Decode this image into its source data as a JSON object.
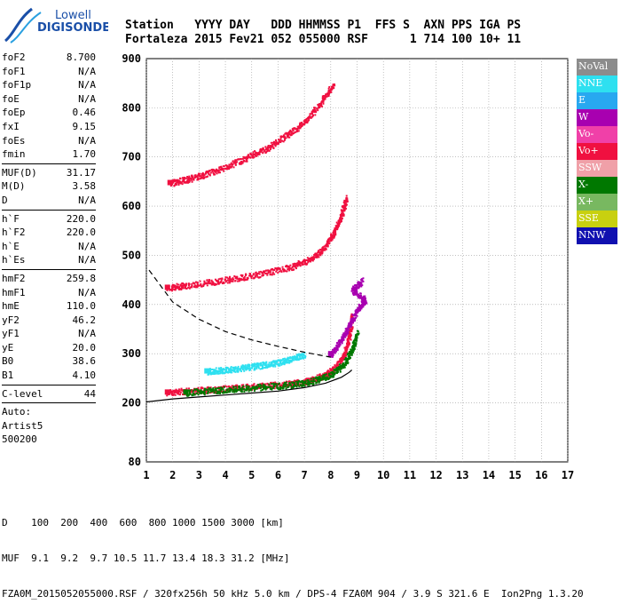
{
  "logo": {
    "line1": "Lowell",
    "line2": "DIGISONDE"
  },
  "header": {
    "line1": "Station   YYYY DAY   DDD HHMMSS P1  FFS S  AXN PPS IGA PS",
    "line2": "Fortaleza 2015 Fev21 052 055000 RSF      1 714 100 10+ 11"
  },
  "params_group1": [
    {
      "name": "foF2",
      "value": "8.700"
    },
    {
      "name": "foF1",
      "value": "N/A"
    },
    {
      "name": "foF1p",
      "value": "N/A"
    },
    {
      "name": "foE",
      "value": "N/A"
    },
    {
      "name": "foEp",
      "value": "0.46"
    },
    {
      "name": "fxI",
      "value": "9.15"
    },
    {
      "name": "foEs",
      "value": "N/A"
    },
    {
      "name": "fmin",
      "value": "1.70"
    }
  ],
  "params_group2": [
    {
      "name": "MUF(D)",
      "value": "31.17"
    },
    {
      "name": "M(D)",
      "value": "3.58"
    },
    {
      "name": "D",
      "value": "N/A"
    }
  ],
  "params_group3": [
    {
      "name": "h`F",
      "value": "220.0"
    },
    {
      "name": "h`F2",
      "value": "220.0"
    },
    {
      "name": "h`E",
      "value": "N/A"
    },
    {
      "name": "h`Es",
      "value": "N/A"
    }
  ],
  "params_group4": [
    {
      "name": "hmF2",
      "value": "259.8"
    },
    {
      "name": "hmF1",
      "value": "N/A"
    },
    {
      "name": "hmE",
      "value": "110.0"
    },
    {
      "name": "yF2",
      "value": "46.2"
    },
    {
      "name": "yF1",
      "value": "N/A"
    },
    {
      "name": "yE",
      "value": "20.0"
    },
    {
      "name": "B0",
      "value": "38.6"
    },
    {
      "name": "B1",
      "value": "4.10"
    }
  ],
  "params_group5": [
    {
      "name": "C-level",
      "value": "44"
    }
  ],
  "auto": [
    "Auto:",
    "Artist5",
    "500200"
  ],
  "legend": [
    {
      "label": "NoVal",
      "color": "#8c8c8c"
    },
    {
      "label": "NNE",
      "color": "#2ee0f0"
    },
    {
      "label": "E",
      "color": "#28a8f0"
    },
    {
      "label": "W",
      "color": "#a800b0"
    },
    {
      "label": "Vo-",
      "color": "#f040a8"
    },
    {
      "label": "Vo+",
      "color": "#f01040"
    },
    {
      "label": "SSW",
      "color": "#f0a0a8"
    },
    {
      "label": "X-",
      "color": "#007800"
    },
    {
      "label": "X+",
      "color": "#78b860"
    },
    {
      "label": "SSE",
      "color": "#c8d010"
    },
    {
      "label": "NNW",
      "color": "#1010b0"
    }
  ],
  "footer": {
    "line1": "D    100  200  400  600  800 1000 1500 3000 [km]",
    "line2": "MUF  9.1  9.2  9.7 10.5 11.7 13.4 18.3 31.2 [MHz]",
    "line3": "FZA0M_2015052055000.RSF / 320fx256h 50 kHz 5.0 km / DPS-4 FZA0M 904 / 3.9 S 321.6 E  Ion2Png 1.3.20"
  },
  "chart_data": {
    "type": "scatter",
    "title": "",
    "xlabel": "",
    "ylabel": "",
    "xlim": [
      1,
      17
    ],
    "ylim": [
      80,
      900
    ],
    "x_ticks": [
      1,
      2,
      3,
      4,
      5,
      6,
      7,
      8,
      9,
      10,
      11,
      12,
      13,
      14,
      15,
      16,
      17
    ],
    "y_ticks": [
      80,
      200,
      300,
      400,
      500,
      600,
      700,
      800,
      900
    ],
    "grid": true,
    "series": [
      {
        "name": "Vo+",
        "color": "#f01040",
        "trace": [
          [
            1.8,
            222
          ],
          [
            2.5,
            225
          ],
          [
            3.5,
            228
          ],
          [
            4.5,
            232
          ],
          [
            5.5,
            236
          ],
          [
            6.5,
            240
          ],
          [
            7.2,
            246
          ],
          [
            7.8,
            258
          ],
          [
            8.2,
            275
          ],
          [
            8.5,
            300
          ],
          [
            8.7,
            340
          ],
          [
            8.8,
            380
          ]
        ]
      },
      {
        "name": "Vo+",
        "color": "#f01040",
        "trace": [
          [
            1.8,
            435
          ],
          [
            2.5,
            440
          ],
          [
            3.5,
            447
          ],
          [
            4.5,
            455
          ],
          [
            5.5,
            465
          ],
          [
            6.5,
            478
          ],
          [
            7.2,
            492
          ],
          [
            7.7,
            515
          ],
          [
            8.1,
            545
          ],
          [
            8.4,
            585
          ],
          [
            8.6,
            620
          ]
        ]
      },
      {
        "name": "Vo+",
        "color": "#f01040",
        "trace": [
          [
            1.9,
            648
          ],
          [
            2.5,
            655
          ],
          [
            3.2,
            665
          ],
          [
            4.0,
            680
          ],
          [
            4.8,
            700
          ],
          [
            5.6,
            720
          ],
          [
            6.3,
            745
          ],
          [
            7.0,
            772
          ],
          [
            7.6,
            810
          ],
          [
            8.1,
            850
          ]
        ]
      },
      {
        "name": "X-",
        "color": "#007800",
        "trace": [
          [
            2.5,
            222
          ],
          [
            3.5,
            226
          ],
          [
            4.5,
            230
          ],
          [
            5.5,
            234
          ],
          [
            6.5,
            238
          ],
          [
            7.3,
            245
          ],
          [
            8.0,
            258
          ],
          [
            8.5,
            280
          ],
          [
            8.8,
            310
          ],
          [
            9.0,
            345
          ]
        ]
      },
      {
        "name": "NNE",
        "color": "#2ee0f0",
        "trace": [
          [
            3.3,
            265
          ],
          [
            3.9,
            268
          ],
          [
            4.5,
            271
          ],
          [
            5.2,
            276
          ],
          [
            5.9,
            282
          ],
          [
            6.5,
            290
          ],
          [
            7.0,
            300
          ]
        ]
      },
      {
        "name": "W",
        "color": "#a800b0",
        "trace": [
          [
            8.0,
            300
          ],
          [
            8.4,
            330
          ],
          [
            8.7,
            360
          ],
          [
            9.0,
            390
          ],
          [
            9.3,
            410
          ],
          [
            8.8,
            430
          ],
          [
            9.2,
            450
          ]
        ]
      }
    ],
    "curves": [
      {
        "name": "dashed",
        "style": "dashed",
        "points": [
          [
            1.1,
            470
          ],
          [
            2,
            405
          ],
          [
            3,
            370
          ],
          [
            4,
            345
          ],
          [
            5,
            328
          ],
          [
            6,
            315
          ],
          [
            7,
            303
          ],
          [
            7.6,
            297
          ],
          [
            8.0,
            293
          ]
        ]
      },
      {
        "name": "solid",
        "style": "solid",
        "points": [
          [
            1.0,
            202
          ],
          [
            2,
            208
          ],
          [
            3,
            212
          ],
          [
            4,
            216
          ],
          [
            5,
            220
          ],
          [
            6,
            224
          ],
          [
            7,
            231
          ],
          [
            7.8,
            240
          ],
          [
            8.4,
            252
          ],
          [
            8.7,
            262
          ],
          [
            8.8,
            267
          ]
        ]
      }
    ]
  }
}
